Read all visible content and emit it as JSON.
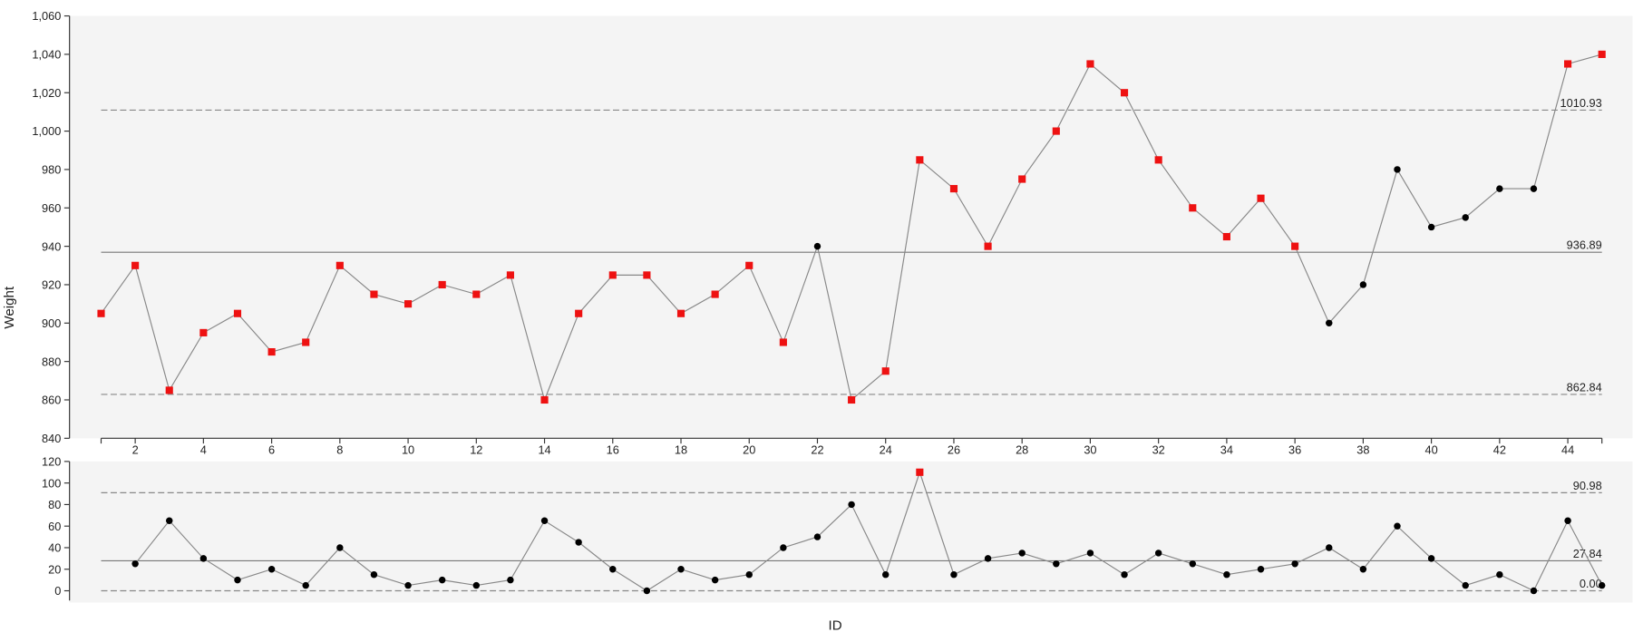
{
  "chart_data": [
    {
      "type": "line",
      "y_label": "Weight",
      "x": [
        1,
        2,
        3,
        4,
        5,
        6,
        7,
        8,
        9,
        10,
        11,
        12,
        13,
        14,
        15,
        16,
        17,
        18,
        19,
        20,
        21,
        22,
        23,
        24,
        25,
        26,
        27,
        28,
        29,
        30,
        31,
        32,
        33,
        34,
        35,
        36,
        37,
        38,
        39,
        40,
        41,
        42,
        43,
        44,
        45
      ],
      "series": [
        {
          "color": "#000000",
          "line_color": "#888888",
          "highlight_color": "#ee1111",
          "values": [
            905,
            930,
            865,
            895,
            905,
            885,
            890,
            930,
            915,
            910,
            920,
            915,
            925,
            860,
            905,
            925,
            925,
            905,
            915,
            930,
            890,
            940,
            860,
            875,
            985,
            970,
            940,
            975,
            1000,
            1035,
            1020,
            985,
            960,
            945,
            965,
            940,
            900,
            920,
            980,
            950,
            955,
            970,
            970,
            1035,
            1040
          ],
          "highlighted": [
            true,
            true,
            true,
            true,
            true,
            true,
            true,
            true,
            true,
            true,
            true,
            true,
            true,
            true,
            true,
            true,
            true,
            true,
            true,
            true,
            true,
            false,
            true,
            true,
            true,
            true,
            true,
            true,
            true,
            true,
            true,
            true,
            true,
            true,
            true,
            true,
            false,
            false,
            false,
            false,
            false,
            false,
            false,
            true,
            true
          ]
        }
      ],
      "control_lines": [
        {
          "value": 1010.93,
          "style": "dashed"
        },
        {
          "value": 936.89,
          "style": "solid"
        },
        {
          "value": 862.84,
          "style": "dashed"
        }
      ],
      "xlim": [
        1,
        45
      ],
      "xticks": [
        2,
        4,
        6,
        8,
        10,
        12,
        14,
        16,
        18,
        20,
        22,
        24,
        26,
        28,
        30,
        32,
        34,
        36,
        38,
        40,
        42,
        44
      ],
      "ylim": [
        840,
        1060
      ],
      "yticks": [
        840,
        860,
        880,
        900,
        920,
        940,
        960,
        980,
        {
          "value": 1000,
          "label": "1,000"
        },
        {
          "value": 1020,
          "label": "1,020"
        },
        {
          "value": 1040,
          "label": "1,040"
        },
        {
          "value": 1060,
          "label": "1,060"
        }
      ]
    },
    {
      "type": "line",
      "x_label": "ID",
      "x": [
        1,
        2,
        3,
        4,
        5,
        6,
        7,
        8,
        9,
        10,
        11,
        12,
        13,
        14,
        15,
        16,
        17,
        18,
        19,
        20,
        21,
        22,
        23,
        24,
        25,
        26,
        27,
        28,
        29,
        30,
        31,
        32,
        33,
        34,
        35,
        36,
        37,
        38,
        39,
        40,
        41,
        42,
        43,
        44,
        45
      ],
      "series": [
        {
          "color": "#000000",
          "line_color": "#888888",
          "highlight_color": "#ee1111",
          "values": [
            null,
            25,
            65,
            30,
            10,
            20,
            5,
            40,
            15,
            5,
            10,
            5,
            10,
            65,
            45,
            20,
            0,
            20,
            10,
            15,
            40,
            50,
            80,
            15,
            110,
            15,
            30,
            35,
            25,
            35,
            15,
            35,
            25,
            15,
            20,
            25,
            40,
            20,
            60,
            30,
            5,
            15,
            0,
            65,
            5
          ],
          "highlighted": [
            false,
            false,
            false,
            false,
            false,
            false,
            false,
            false,
            false,
            false,
            false,
            false,
            false,
            false,
            false,
            false,
            false,
            false,
            false,
            false,
            false,
            false,
            false,
            false,
            true,
            false,
            false,
            false,
            false,
            false,
            false,
            false,
            false,
            false,
            false,
            false,
            false,
            false,
            false,
            false,
            false,
            false,
            false,
            false,
            false
          ]
        }
      ],
      "control_lines": [
        {
          "value": 90.98,
          "style": "dashed"
        },
        {
          "value": 27.84,
          "style": "solid"
        },
        {
          "value": 0,
          "label": "0.00",
          "style": "dashed"
        }
      ],
      "xlim": [
        1,
        45
      ],
      "ylim": [
        -9,
        120
      ],
      "yticks": [
        0,
        20,
        40,
        60,
        80,
        100,
        120
      ]
    }
  ]
}
